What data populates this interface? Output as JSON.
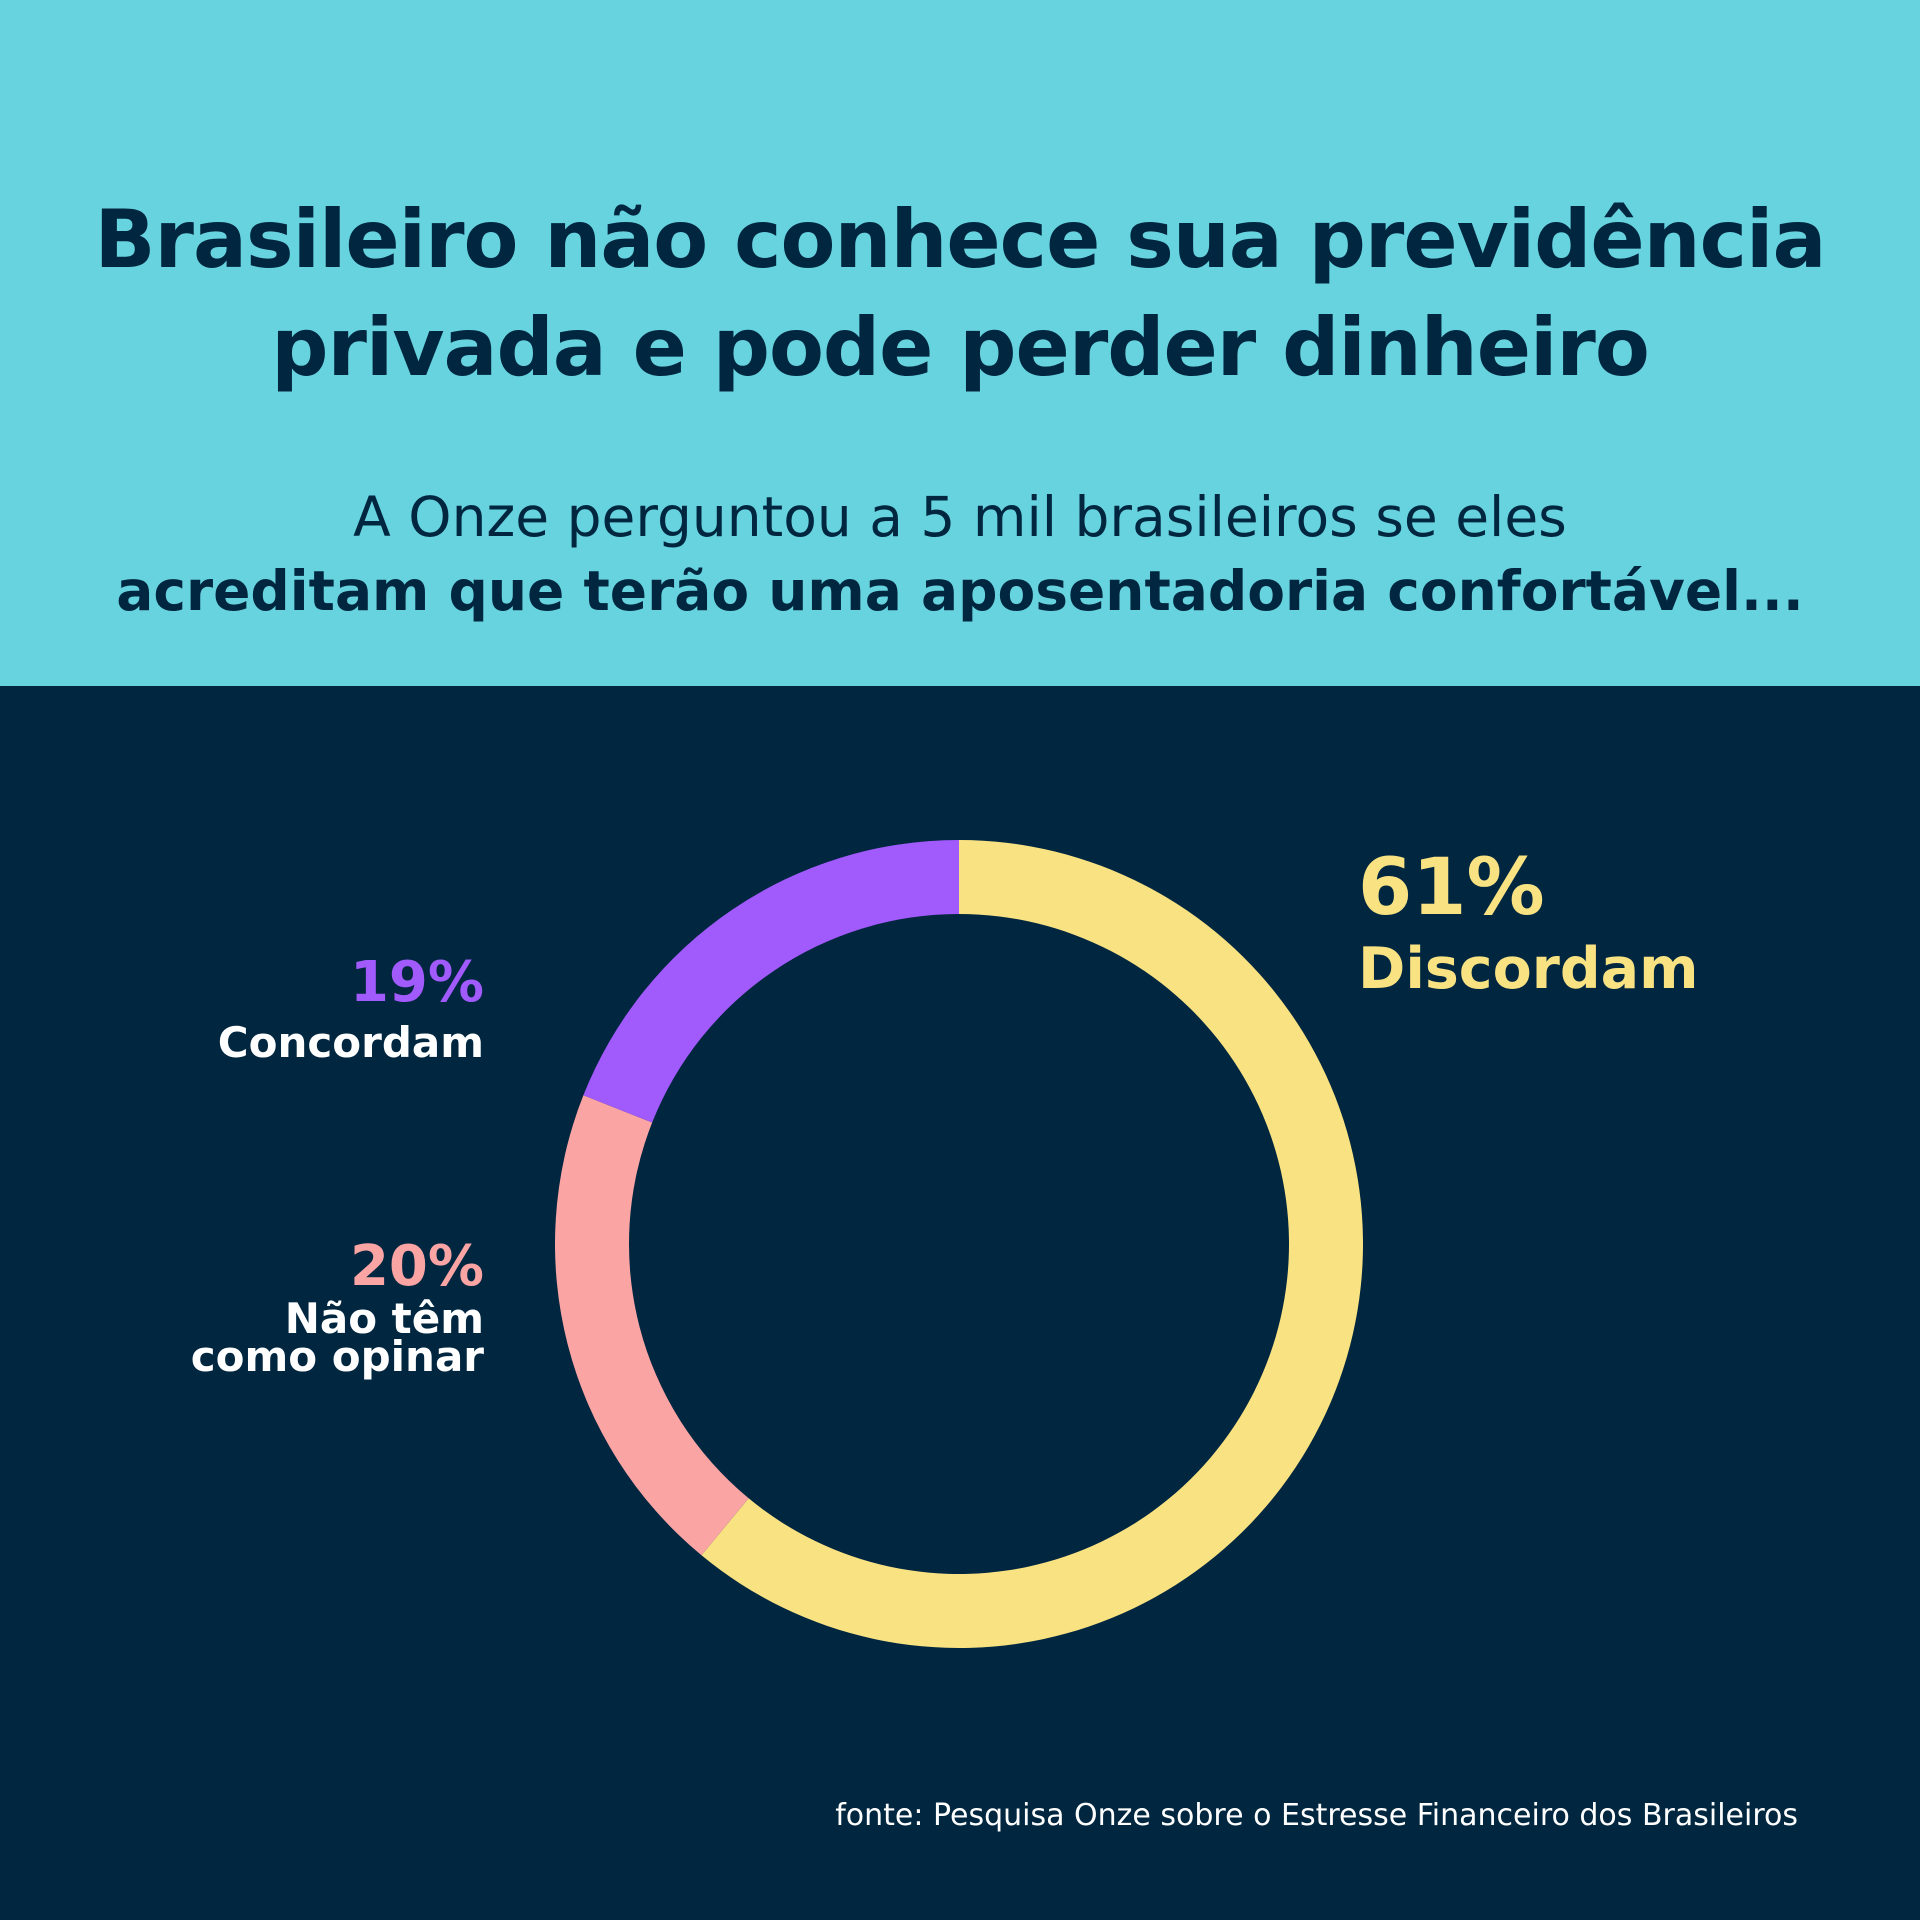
{
  "header": {
    "title_lines": [
      "Brasileiro não conhece sua previdência",
      "privada e pode perder dinheiro"
    ],
    "subtitle_line1": "A Onze perguntou a 5 mil brasileiros se eles",
    "subtitle_line2": "acreditam que terão uma aposentadoria confortável...",
    "background_color": "#67D3DE",
    "text_color": "#012640"
  },
  "colors": {
    "background": "#012640",
    "discordam": "#F9E282",
    "concordam": "#A15AFC",
    "nao_tem": "#FBA4A4"
  },
  "chart_data": {
    "type": "pie",
    "donut": true,
    "start": "top",
    "direction": "clockwise",
    "slices": [
      {
        "key": "discordam",
        "pct_label": "61%",
        "label": "Discordam",
        "value": 61,
        "color": "#F9E282"
      },
      {
        "key": "nao_tem",
        "pct_label": "20%",
        "label_lines": [
          "Não têm",
          "como opinar"
        ],
        "value": 20,
        "color": "#FBA4A4"
      },
      {
        "key": "concordam",
        "pct_label": "19%",
        "label": "Concordam",
        "value": 19,
        "color": "#A15AFC"
      }
    ]
  },
  "footer": {
    "source": "fonte: Pesquisa Onze sobre o Estresse Financeiro dos Brasileiros"
  }
}
